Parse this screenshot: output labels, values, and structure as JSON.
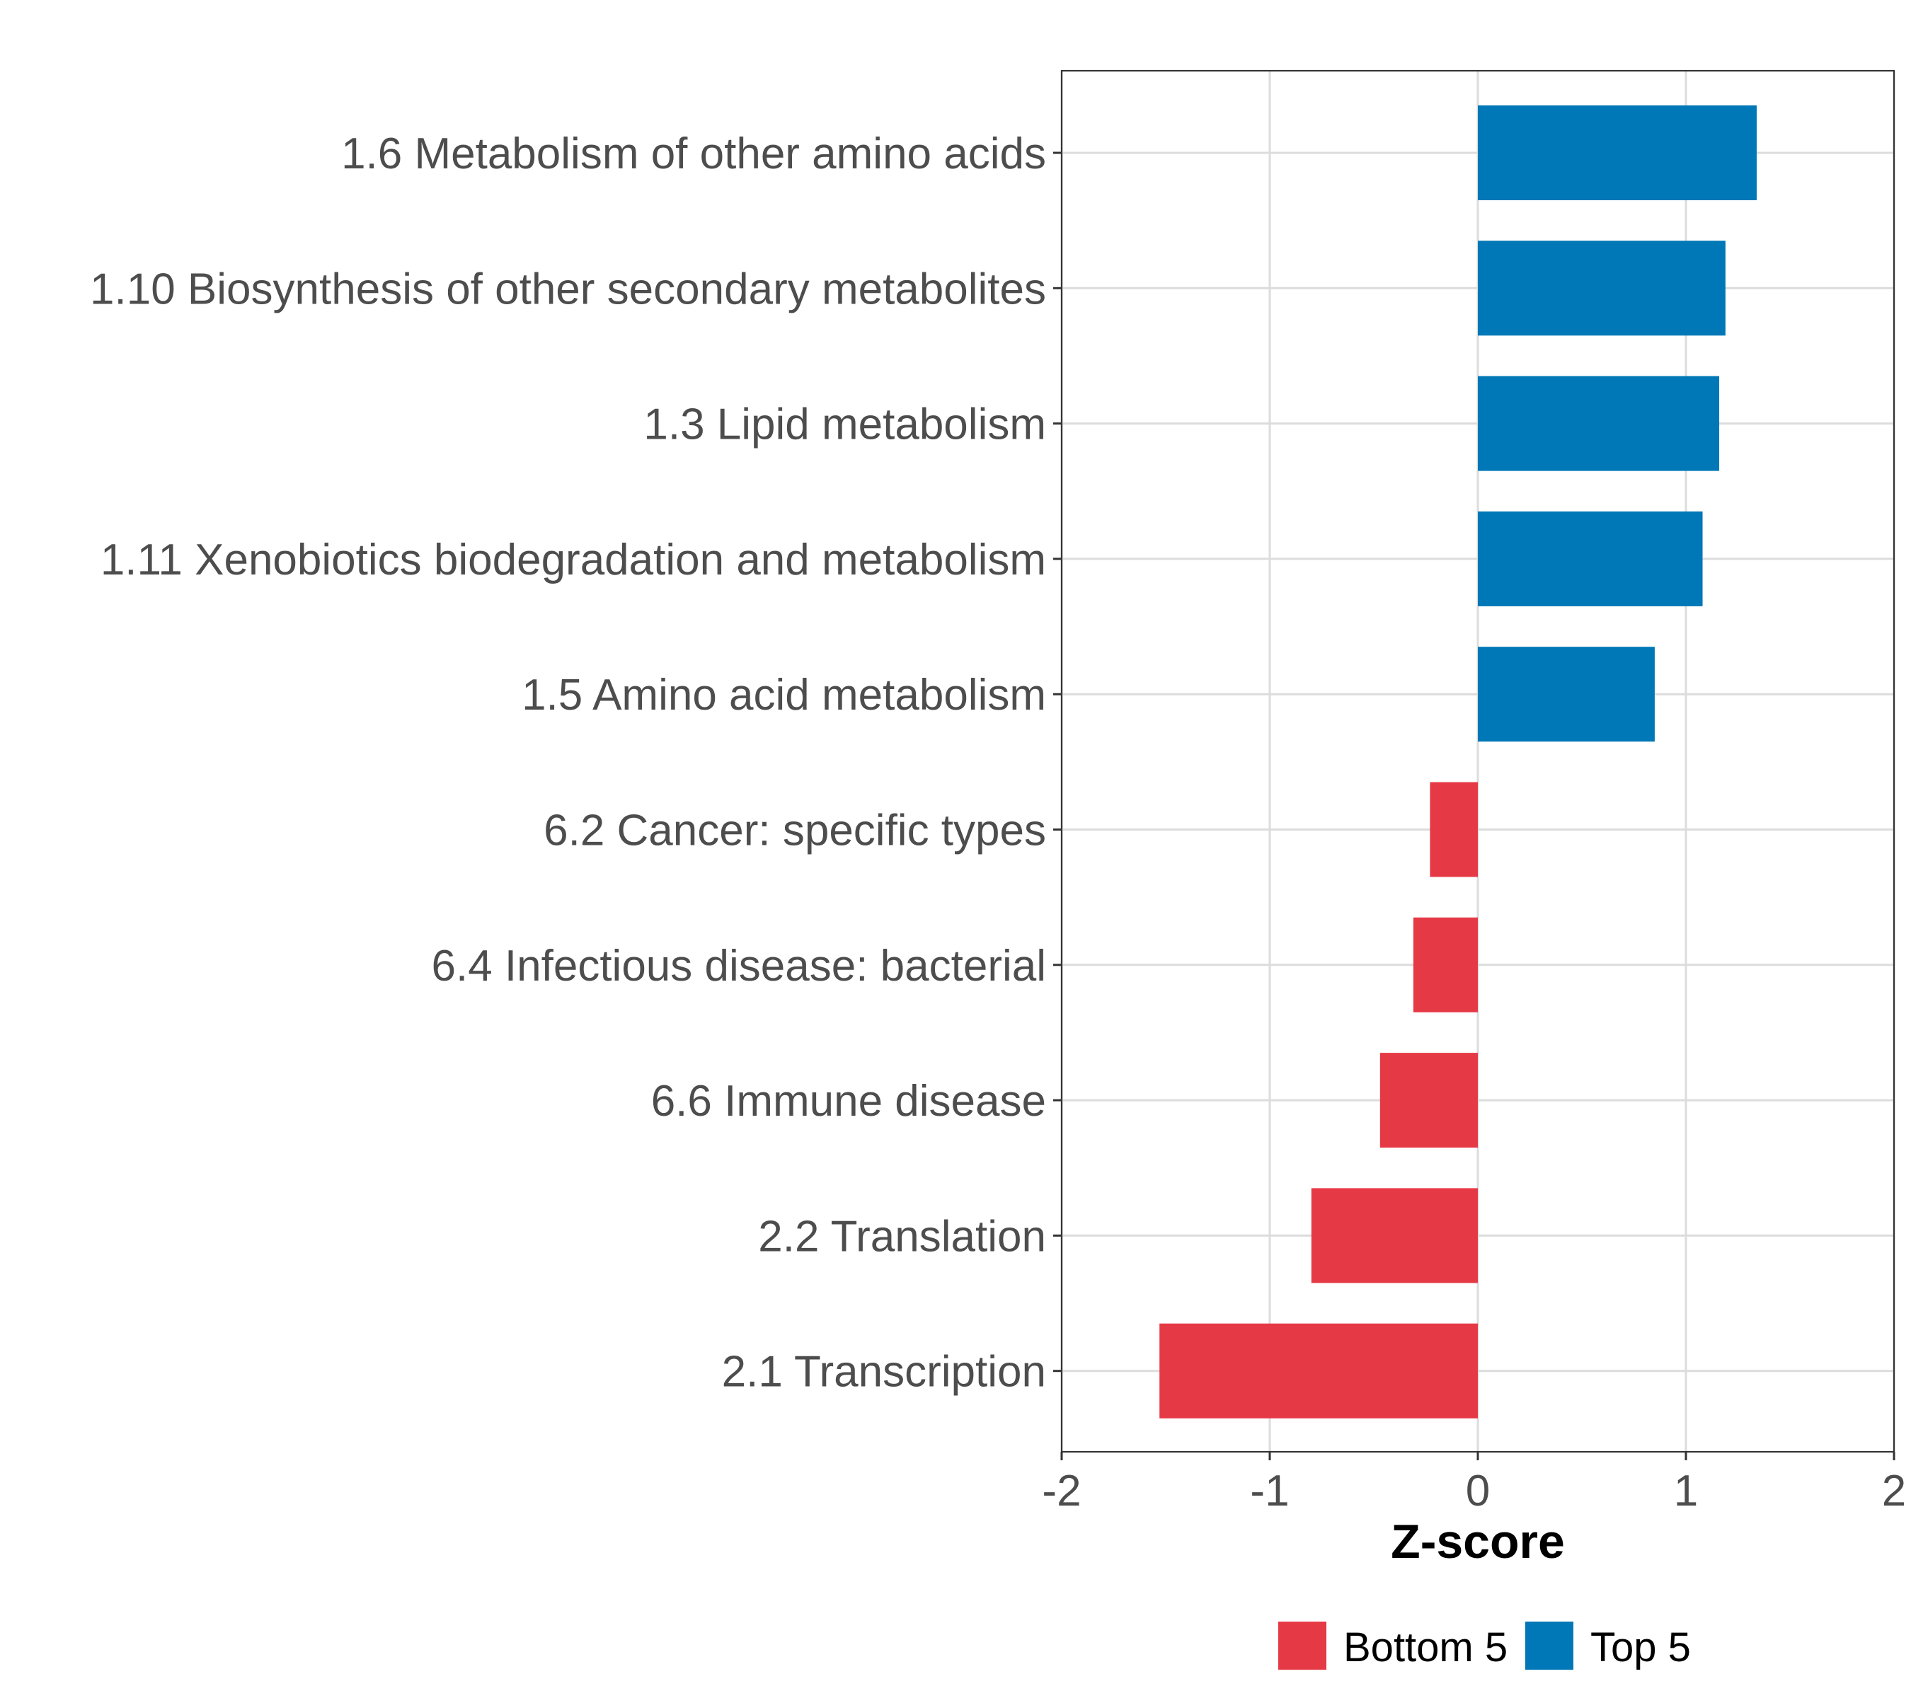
{
  "chart_data": {
    "type": "bar",
    "orientation": "horizontal",
    "title": "",
    "xlabel": "Z-score",
    "ylabel": "",
    "xlim": [
      -2,
      2
    ],
    "xticks": [
      -2,
      -1,
      0,
      1,
      2
    ],
    "xtick_labels": [
      "-2",
      "-1",
      "0",
      "1",
      "2"
    ],
    "grid": true,
    "legend_position": "bottom",
    "categories": [
      "1.6 Metabolism of other amino acids",
      "1.10 Biosynthesis of other secondary metabolites",
      "1.3 Lipid metabolism",
      "1.11 Xenobiotics biodegradation and metabolism",
      "1.5 Amino acid metabolism",
      "6.2 Cancer: specific types",
      "6.4 Infectious disease: bacterial",
      "6.6 Immune disease",
      "2.2 Translation",
      "2.1 Transcription"
    ],
    "values": [
      1.34,
      1.19,
      1.16,
      1.08,
      0.85,
      -0.23,
      -0.31,
      -0.47,
      -0.8,
      -1.53
    ],
    "groups": [
      "Top 5",
      "Top 5",
      "Top 5",
      "Top 5",
      "Top 5",
      "Bottom 5",
      "Bottom 5",
      "Bottom 5",
      "Bottom 5",
      "Bottom 5"
    ],
    "legend": [
      {
        "name": "Bottom 5",
        "color": "#E63946"
      },
      {
        "name": "Top 5",
        "color": "#0077B6"
      }
    ]
  }
}
